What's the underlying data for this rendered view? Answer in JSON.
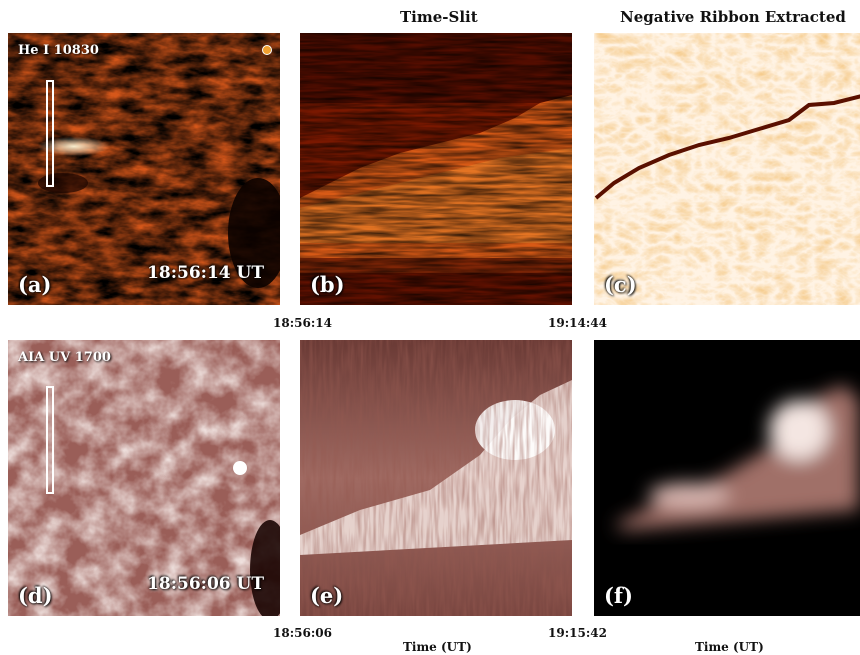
{
  "headers": {
    "col2": "Time-Slit",
    "col3": "Negative Ribbon Extracted"
  },
  "panels": {
    "a": {
      "label": "(a)",
      "instrument": "He I 10830",
      "time": "18:56:14 UT"
    },
    "b": {
      "label": "(b)"
    },
    "c": {
      "label": "(c)"
    },
    "d": {
      "label": "(d)",
      "instrument": "AIA UV 1700",
      "time": "18:56:06 UT"
    },
    "e": {
      "label": "(e)"
    },
    "f": {
      "label": "(f)"
    }
  },
  "axis": {
    "top_start": "18:56:14",
    "top_end": "19:14:44",
    "bottom_start": "18:56:06",
    "bottom_end": "19:15:42",
    "xlabel_e": "Time (UT)",
    "xlabel_f": "Time (UT)"
  },
  "colors": {
    "he_colormap": "#c84a00",
    "aia_colormap": "#8a4b45",
    "background": "#ffffff"
  }
}
